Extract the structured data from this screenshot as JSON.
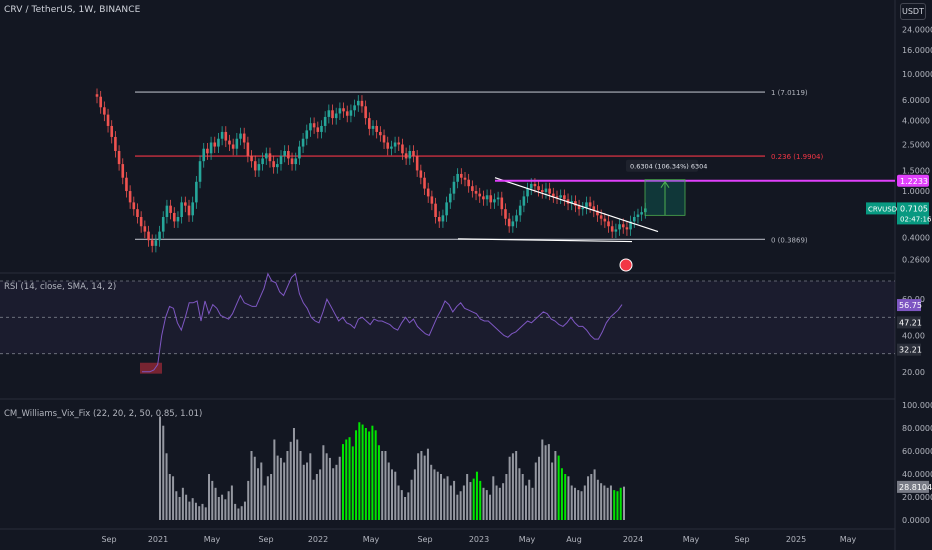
{
  "chart_title": "CRV / TetherUS, 1W, BINANCE",
  "quote_button": "USDT",
  "price_axis_labels": [
    "24.0000",
    "16.0000",
    "10.0000",
    "6.0000",
    "4.0000",
    "2.5000",
    "1.5000",
    "1.0000",
    "0.4000",
    "0.2600"
  ],
  "price_tag": {
    "symbol": "CRVUSDT",
    "price": "0.7105",
    "countdown": "02:47:16",
    "color": "#089981"
  },
  "magenta_line_label": "1.2233",
  "fib_labels": {
    "top": "1 (7.0119)",
    "mid": "0.236 (1.9904)",
    "bottom": "0 (0.3869)"
  },
  "measure_label": "0.6304 (106.34%) 6304",
  "rsi": {
    "title": "RSI (14, close, SMA, 14, 2)",
    "axis_labels": [
      "60.00",
      "40.00",
      "20.00"
    ],
    "value_label": "56.75",
    "sma_label": "47.21",
    "lower_label": "32.21"
  },
  "vix": {
    "title": "CM_Williams_Vix_Fix (22, 20, 2, 50, 0.85, 1.01)",
    "axis_labels": [
      "100.0000",
      "80.0000",
      "60.0000",
      "40.0000",
      "20.0000",
      "0.0000"
    ],
    "value_label": "28.8104"
  },
  "time_axis": [
    "Sep",
    "2021",
    "May",
    "Sep",
    "2022",
    "May",
    "Sep",
    "2023",
    "May",
    "Aug",
    "2024",
    "May",
    "Sep",
    "2025",
    "May"
  ],
  "colors": {
    "up": "#26a69a",
    "down": "#ef5350",
    "fib_grey": "#b2b5be",
    "fib_red": "#f23645",
    "magenta": "#e040fb",
    "rsi": "#7e57c2",
    "vix_grey": "#9598a1",
    "vix_green": "#00e600"
  },
  "chart_data": {
    "type": "candlestick",
    "scale": "log",
    "levels": {
      "fib_1": 7.0119,
      "fib_0236": 1.9904,
      "fib_0": 0.3869,
      "magenta": 1.2233
    },
    "price_series_weekly_close": [
      6.4,
      5.2,
      4.5,
      3.6,
      2.9,
      2.2,
      1.7,
      1.3,
      1.0,
      0.8,
      0.7,
      0.6,
      0.5,
      0.45,
      0.38,
      0.34,
      0.38,
      0.45,
      0.6,
      0.75,
      0.65,
      0.55,
      0.6,
      0.8,
      0.75,
      0.62,
      0.8,
      1.2,
      1.8,
      2.3,
      2.1,
      2.6,
      2.4,
      2.8,
      3.2,
      2.7,
      2.5,
      2.3,
      2.8,
      3.1,
      2.6,
      2.0,
      1.8,
      1.5,
      1.7,
      1.9,
      2.1,
      1.8,
      1.6,
      1.7,
      2.0,
      2.2,
      1.9,
      1.7,
      1.9,
      2.4,
      2.8,
      3.3,
      3.8,
      3.5,
      3.2,
      3.6,
      4.3,
      4.9,
      4.2,
      4.6,
      5.1,
      4.8,
      4.4,
      4.9,
      5.4,
      5.9,
      5.3,
      4.2,
      3.4,
      3.6,
      3.2,
      3.0,
      2.6,
      2.3,
      2.4,
      2.6,
      2.5,
      2.1,
      1.9,
      2.2,
      2.0,
      1.5,
      1.3,
      1.05,
      0.9,
      0.78,
      0.6,
      0.55,
      0.62,
      0.8,
      0.95,
      1.2,
      1.4,
      1.3,
      1.25,
      1.1,
      1.0,
      0.95,
      0.9,
      0.85,
      0.92,
      0.8,
      0.85,
      0.88,
      0.7,
      0.58,
      0.5,
      0.55,
      0.62,
      0.75,
      0.9,
      1.05,
      1.15,
      1.1,
      1.02,
      0.98,
      1.05,
      0.95,
      0.9,
      0.88,
      0.92,
      0.85,
      0.78,
      0.82,
      0.75,
      0.7,
      0.72,
      0.8,
      0.74,
      0.68,
      0.62,
      0.58,
      0.55,
      0.5,
      0.45,
      0.47,
      0.52,
      0.49,
      0.47,
      0.55,
      0.6,
      0.63,
      0.66,
      0.71
    ],
    "rsi_series": [
      20,
      20,
      20,
      21,
      24,
      40,
      50,
      56,
      55,
      47,
      43,
      50,
      58,
      58,
      59,
      48,
      59,
      52,
      57,
      55,
      51,
      50,
      49,
      52,
      57,
      62,
      58,
      57,
      56,
      56,
      61,
      66,
      74,
      70,
      69,
      64,
      62,
      67,
      72,
      74,
      63,
      58,
      55,
      50,
      48,
      47,
      53,
      60,
      56,
      52,
      48,
      50,
      47,
      46,
      44,
      49,
      50,
      48,
      46,
      49,
      48,
      48,
      47,
      46,
      44,
      43,
      47,
      50,
      47,
      49,
      45,
      43,
      41,
      40,
      45,
      50,
      54,
      59,
      57,
      53,
      56,
      58,
      55,
      54,
      53,
      52,
      49,
      48,
      48,
      46,
      44,
      42,
      40,
      39,
      41,
      42,
      44,
      46,
      48,
      47,
      49,
      51,
      53,
      52,
      49,
      48,
      46,
      45,
      47,
      50,
      47,
      45,
      45,
      43,
      40,
      38,
      38,
      42,
      47,
      50,
      52,
      54,
      57
    ],
    "vix_series": [
      90,
      82,
      58,
      40,
      38,
      25,
      20,
      28,
      22,
      16,
      19,
      15,
      12,
      14,
      11,
      40,
      34,
      28,
      20,
      22,
      18,
      25,
      30,
      14,
      10,
      12,
      16,
      34,
      60,
      55,
      45,
      50,
      30,
      38,
      40,
      70,
      56,
      54,
      50,
      60,
      68,
      80,
      70,
      60,
      48,
      50,
      58,
      35,
      40,
      44,
      65,
      58,
      54,
      45,
      48,
      55,
      66,
      70,
      72,
      64,
      78,
      85,
      83,
      80,
      77,
      82,
      78,
      65,
      60,
      60,
      50,
      44,
      42,
      30,
      26,
      20,
      24,
      35,
      44,
      58,
      60,
      56,
      62,
      48,
      44,
      42,
      40,
      36,
      38,
      30,
      34,
      22,
      25,
      30,
      40,
      33,
      36,
      42,
      34,
      28,
      26,
      22,
      38,
      30,
      28,
      32,
      40,
      55,
      58,
      60,
      45,
      40,
      30,
      35,
      28,
      50,
      55,
      70,
      65,
      66,
      50,
      60,
      56,
      45,
      40,
      38,
      30,
      28,
      26,
      25,
      30,
      38,
      40,
      44,
      35,
      32,
      30,
      28,
      30,
      26,
      25,
      28,
      29
    ]
  }
}
